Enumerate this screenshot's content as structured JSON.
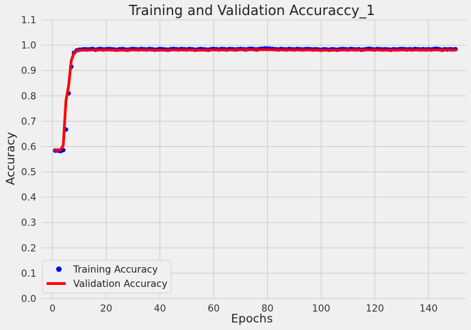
{
  "chart_data": {
    "type": "line",
    "title": "Training and Validation Accuraccy_1",
    "xlabel": "Epochs",
    "ylabel": "Accuracy",
    "xlim": [
      -4,
      154
    ],
    "ylim": [
      0.0,
      1.1
    ],
    "xticks": [
      0,
      20,
      40,
      60,
      80,
      100,
      120,
      140
    ],
    "yticks": [
      "0.0",
      "0.1",
      "0.2",
      "0.3",
      "0.4",
      "0.5",
      "0.6",
      "0.7",
      "0.8",
      "0.9",
      "1.0",
      "1.1"
    ],
    "grid": true,
    "legend_position": "lower-left",
    "series": [
      {
        "name": "Training Accuracy",
        "kind": "scatter",
        "color": "#0000ff",
        "points": [
          [
            1,
            0.584
          ],
          [
            2,
            0.584
          ],
          [
            3,
            0.582
          ],
          [
            4,
            0.586
          ],
          [
            5,
            0.667
          ],
          [
            6,
            0.81
          ],
          [
            7,
            0.915
          ],
          [
            8,
            0.97
          ],
          [
            9,
            0.979
          ],
          [
            10,
            0.982
          ],
          [
            11,
            0.983
          ],
          [
            12,
            0.984
          ],
          [
            13,
            0.983
          ],
          [
            14,
            0.984
          ],
          [
            15,
            0.985
          ],
          [
            16,
            0.982
          ],
          [
            17,
            0.984
          ],
          [
            18,
            0.985
          ],
          [
            19,
            0.983
          ],
          [
            20,
            0.984
          ],
          [
            21,
            0.985
          ],
          [
            22,
            0.984
          ],
          [
            23,
            0.983
          ],
          [
            24,
            0.982
          ],
          [
            25,
            0.984
          ],
          [
            26,
            0.985
          ],
          [
            27,
            0.983
          ],
          [
            28,
            0.982
          ],
          [
            29,
            0.984
          ],
          [
            30,
            0.985
          ],
          [
            31,
            0.984
          ],
          [
            32,
            0.983
          ],
          [
            33,
            0.985
          ],
          [
            34,
            0.984
          ],
          [
            35,
            0.983
          ],
          [
            36,
            0.985
          ],
          [
            37,
            0.984
          ],
          [
            38,
            0.982
          ],
          [
            39,
            0.983
          ],
          [
            40,
            0.985
          ],
          [
            41,
            0.984
          ],
          [
            42,
            0.983
          ],
          [
            43,
            0.982
          ],
          [
            44,
            0.984
          ],
          [
            45,
            0.985
          ],
          [
            46,
            0.984
          ],
          [
            47,
            0.983
          ],
          [
            48,
            0.985
          ],
          [
            49,
            0.984
          ],
          [
            50,
            0.983
          ],
          [
            51,
            0.985
          ],
          [
            52,
            0.984
          ],
          [
            53,
            0.982
          ],
          [
            54,
            0.983
          ],
          [
            55,
            0.985
          ],
          [
            56,
            0.984
          ],
          [
            57,
            0.983
          ],
          [
            58,
            0.982
          ],
          [
            59,
            0.984
          ],
          [
            60,
            0.985
          ],
          [
            61,
            0.984
          ],
          [
            62,
            0.983
          ],
          [
            63,
            0.985
          ],
          [
            64,
            0.984
          ],
          [
            65,
            0.983
          ],
          [
            66,
            0.985
          ],
          [
            67,
            0.984
          ],
          [
            68,
            0.983
          ],
          [
            69,
            0.984
          ],
          [
            70,
            0.985
          ],
          [
            71,
            0.984
          ],
          [
            72,
            0.983
          ],
          [
            73,
            0.985
          ],
          [
            74,
            0.986
          ],
          [
            75,
            0.984
          ],
          [
            76,
            0.983
          ],
          [
            77,
            0.985
          ],
          [
            78,
            0.986
          ],
          [
            79,
            0.987
          ],
          [
            80,
            0.987
          ],
          [
            81,
            0.986
          ],
          [
            82,
            0.985
          ],
          [
            83,
            0.984
          ],
          [
            84,
            0.983
          ],
          [
            85,
            0.985
          ],
          [
            86,
            0.984
          ],
          [
            87,
            0.983
          ],
          [
            88,
            0.985
          ],
          [
            89,
            0.984
          ],
          [
            90,
            0.983
          ],
          [
            91,
            0.985
          ],
          [
            92,
            0.984
          ],
          [
            93,
            0.983
          ],
          [
            94,
            0.984
          ],
          [
            95,
            0.985
          ],
          [
            96,
            0.984
          ],
          [
            97,
            0.983
          ],
          [
            98,
            0.984
          ],
          [
            99,
            0.983
          ],
          [
            100,
            0.982
          ],
          [
            101,
            0.984
          ],
          [
            102,
            0.983
          ],
          [
            103,
            0.982
          ],
          [
            104,
            0.984
          ],
          [
            105,
            0.983
          ],
          [
            106,
            0.982
          ],
          [
            107,
            0.984
          ],
          [
            108,
            0.985
          ],
          [
            109,
            0.984
          ],
          [
            110,
            0.983
          ],
          [
            111,
            0.985
          ],
          [
            112,
            0.984
          ],
          [
            113,
            0.983
          ],
          [
            114,
            0.984
          ],
          [
            115,
            0.982
          ],
          [
            116,
            0.983
          ],
          [
            117,
            0.985
          ],
          [
            118,
            0.986
          ],
          [
            119,
            0.984
          ],
          [
            120,
            0.983
          ],
          [
            121,
            0.985
          ],
          [
            122,
            0.984
          ],
          [
            123,
            0.983
          ],
          [
            124,
            0.984
          ],
          [
            125,
            0.983
          ],
          [
            126,
            0.982
          ],
          [
            127,
            0.984
          ],
          [
            128,
            0.983
          ],
          [
            129,
            0.984
          ],
          [
            130,
            0.985
          ],
          [
            131,
            0.984
          ],
          [
            132,
            0.983
          ],
          [
            133,
            0.984
          ],
          [
            134,
            0.983
          ],
          [
            135,
            0.985
          ],
          [
            136,
            0.984
          ],
          [
            137,
            0.983
          ],
          [
            138,
            0.984
          ],
          [
            139,
            0.983
          ],
          [
            140,
            0.984
          ],
          [
            141,
            0.983
          ],
          [
            142,
            0.985
          ],
          [
            143,
            0.986
          ],
          [
            144,
            0.984
          ],
          [
            145,
            0.982
          ],
          [
            146,
            0.984
          ],
          [
            147,
            0.983
          ],
          [
            148,
            0.984
          ],
          [
            149,
            0.983
          ],
          [
            150,
            0.984
          ]
        ]
      },
      {
        "name": "Validation Accuracy",
        "kind": "line",
        "color": "#ff0000",
        "points": [
          [
            1,
            0.585
          ],
          [
            2,
            0.585
          ],
          [
            3,
            0.587
          ],
          [
            4,
            0.605
          ],
          [
            5,
            0.78
          ],
          [
            6,
            0.84
          ],
          [
            7,
            0.94
          ],
          [
            8,
            0.97
          ],
          [
            9,
            0.978
          ],
          [
            10,
            0.98
          ],
          [
            15,
            0.981
          ],
          [
            20,
            0.981
          ],
          [
            25,
            0.98
          ],
          [
            30,
            0.981
          ],
          [
            35,
            0.981
          ],
          [
            40,
            0.98
          ],
          [
            45,
            0.981
          ],
          [
            50,
            0.981
          ],
          [
            55,
            0.98
          ],
          [
            60,
            0.981
          ],
          [
            65,
            0.981
          ],
          [
            70,
            0.982
          ],
          [
            75,
            0.982
          ],
          [
            80,
            0.982
          ],
          [
            85,
            0.981
          ],
          [
            90,
            0.981
          ],
          [
            95,
            0.981
          ],
          [
            100,
            0.98
          ],
          [
            105,
            0.98
          ],
          [
            110,
            0.981
          ],
          [
            115,
            0.981
          ],
          [
            120,
            0.981
          ],
          [
            125,
            0.98
          ],
          [
            130,
            0.981
          ],
          [
            135,
            0.981
          ],
          [
            140,
            0.981
          ],
          [
            145,
            0.981
          ],
          [
            150,
            0.981
          ]
        ]
      }
    ]
  }
}
